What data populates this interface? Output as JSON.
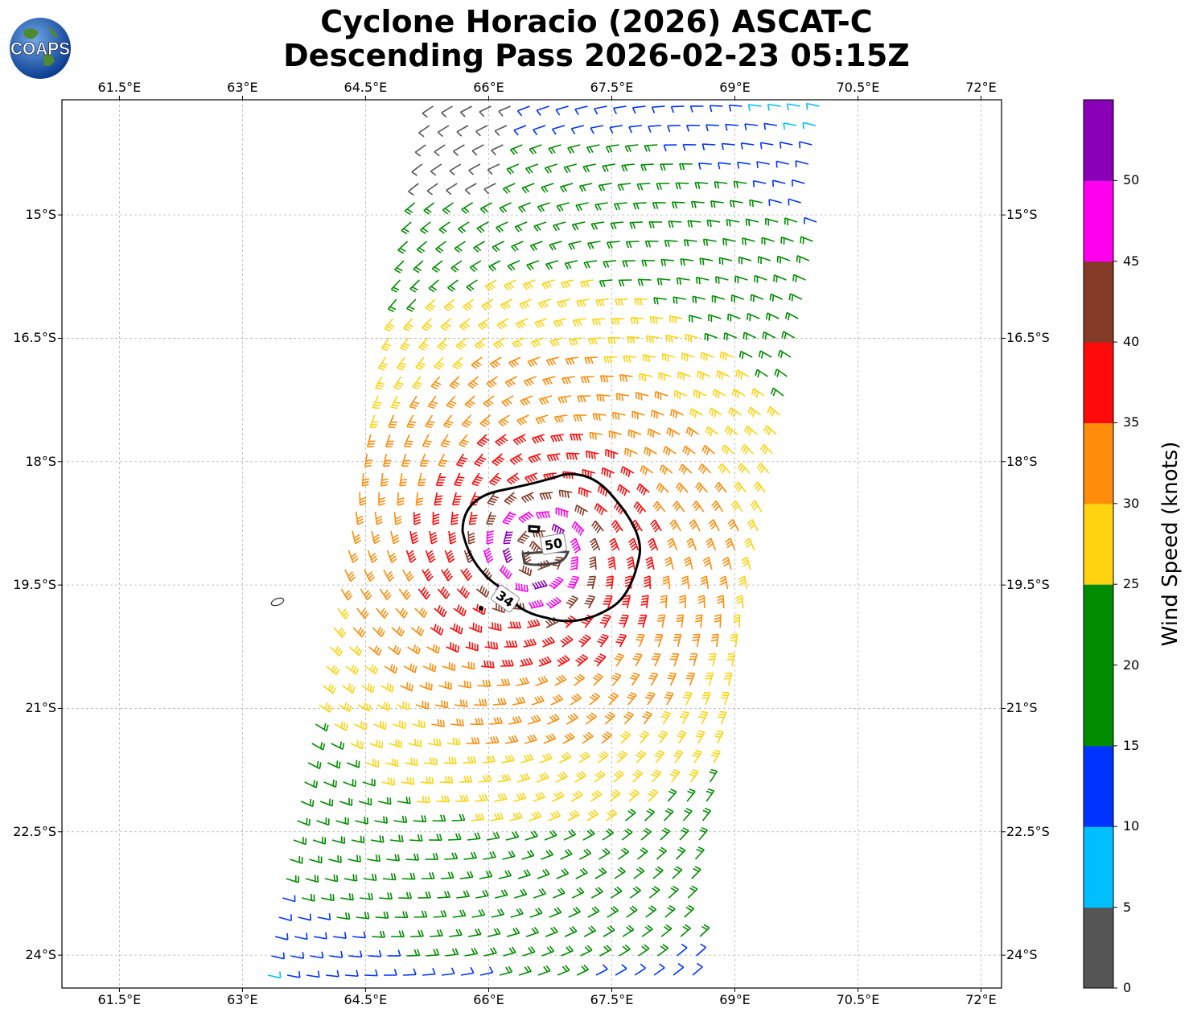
{
  "title_line1": "Cyclone Horacio (2026) ASCAT-C",
  "title_line2": "Descending Pass 2026-02-23 05:15Z",
  "logo": {
    "text": "COAPS",
    "icon": "globe-icon"
  },
  "lon_labels": [
    "61.5°E",
    "63°E",
    "64.5°E",
    "66°E",
    "67.5°E",
    "69°E",
    "70.5°E",
    "72°E"
  ],
  "lat_labels": [
    "15°S",
    "16.5°S",
    "18°S",
    "19.5°S",
    "21°S",
    "22.5°S",
    "24°S"
  ],
  "colorbar": {
    "title": "Wind Speed (knots)",
    "tick_labels": [
      "0",
      "5",
      "10",
      "15",
      "20",
      "25",
      "30",
      "35",
      "40",
      "45",
      "50"
    ],
    "colors": [
      "#555555",
      "#00bfff",
      "#0033ff",
      "#008c00",
      "#008c00",
      "#ffd310",
      "#ff8c0a",
      "#ff0a0a",
      "#833a26",
      "#ff00ef",
      "#8a00b8",
      "#2f0060"
    ],
    "bins": [
      0,
      5,
      10,
      15,
      20,
      25,
      30,
      35,
      40,
      45,
      50,
      55
    ]
  },
  "contours": [
    {
      "label": "34",
      "value_kt": 34
    },
    {
      "label": "50",
      "value_kt": 50
    }
  ],
  "storm_center": {
    "lon": 66.6,
    "lat": -19.1
  },
  "map_extent": {
    "lon_min": 60.8,
    "lon_max": 72.25,
    "lat_min": -24.4,
    "lat_max": -13.6
  }
}
